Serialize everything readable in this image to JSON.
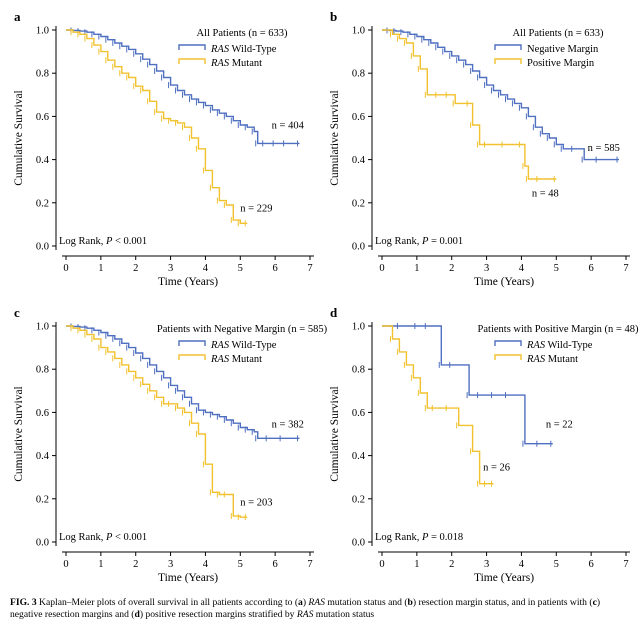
{
  "colors": {
    "wild": "#4f6fc0",
    "mutant": "#f2c12e",
    "axis": "#000000"
  },
  "caption": {
    "label": "FIG. 3",
    "parts": [
      {
        "t": " Kaplan–Meier plots of overall survival in all patients according to (",
        "s": "n"
      },
      {
        "t": "a",
        "s": "b"
      },
      {
        "t": ") ",
        "s": "n"
      },
      {
        "t": "RAS",
        "s": "i"
      },
      {
        "t": " mutation status and (",
        "s": "n"
      },
      {
        "t": "b",
        "s": "b"
      },
      {
        "t": ") resection margin status, and in patients with (",
        "s": "n"
      },
      {
        "t": "c",
        "s": "b"
      },
      {
        "t": ") negative resection margins and (",
        "s": "n"
      },
      {
        "t": "d",
        "s": "b"
      },
      {
        "t": ") positive resection margins stratified by ",
        "s": "n"
      },
      {
        "t": "RAS",
        "s": "i"
      },
      {
        "t": " mutation status",
        "s": "n"
      }
    ]
  },
  "chart_data": [
    {
      "type": "line",
      "panel": "a",
      "title": "All Patients (n = 633)",
      "xlabel": "Time (Years)",
      "ylabel": "Cumulative Survival",
      "xlim": [
        0,
        7
      ],
      "ylim": [
        0,
        1
      ],
      "xticks": [
        0,
        1,
        2,
        3,
        4,
        5,
        6,
        7
      ],
      "yticks": [
        "0.0",
        "0.2",
        "0.4",
        "0.6",
        "0.8",
        "1.0"
      ],
      "footnote": {
        "pre": "Log Rank, ",
        "ital": "P",
        "post": " < 0.001"
      },
      "series": [
        {
          "name_it": "RAS",
          "name_rest": " Wild-Type",
          "color_key": "wild",
          "x": [
            0,
            0.2,
            0.4,
            0.6,
            0.8,
            1.0,
            1.2,
            1.4,
            1.6,
            1.8,
            2.0,
            2.2,
            2.4,
            2.6,
            2.8,
            3.0,
            3.2,
            3.4,
            3.6,
            3.8,
            4.0,
            4.2,
            4.4,
            4.6,
            4.8,
            5.0,
            5.2,
            5.4,
            5.5,
            5.7,
            6.0,
            6.3,
            6.7
          ],
          "y": [
            1.0,
            0.998,
            0.995,
            0.99,
            0.98,
            0.97,
            0.955,
            0.94,
            0.925,
            0.91,
            0.89,
            0.865,
            0.84,
            0.81,
            0.78,
            0.745,
            0.72,
            0.7,
            0.68,
            0.665,
            0.65,
            0.63,
            0.615,
            0.6,
            0.58,
            0.56,
            0.55,
            0.53,
            0.475,
            0.475,
            0.475,
            0.475,
            0.475
          ],
          "n_label": "n = 404",
          "n_at": [
            5.9,
            0.545
          ]
        },
        {
          "name_it": "RAS",
          "name_rest": " Mutant",
          "color_key": "mutant",
          "x": [
            0,
            0.2,
            0.4,
            0.6,
            0.8,
            1.0,
            1.2,
            1.4,
            1.6,
            1.8,
            2.0,
            2.2,
            2.4,
            2.6,
            2.8,
            3.0,
            3.2,
            3.4,
            3.6,
            3.8,
            4.0,
            4.2,
            4.4,
            4.6,
            4.8,
            5.0,
            5.2
          ],
          "y": [
            1.0,
            0.99,
            0.98,
            0.96,
            0.93,
            0.9,
            0.86,
            0.83,
            0.8,
            0.78,
            0.74,
            0.72,
            0.67,
            0.62,
            0.59,
            0.58,
            0.57,
            0.55,
            0.5,
            0.45,
            0.35,
            0.27,
            0.21,
            0.19,
            0.12,
            0.105,
            0.105
          ],
          "n_label": "n = 229",
          "n_at": [
            5.0,
            0.16
          ]
        }
      ]
    },
    {
      "type": "line",
      "panel": "b",
      "title": "All Patients (n = 633)",
      "xlabel": "Time (Years)",
      "ylabel": "Cumulative Survival",
      "xlim": [
        0,
        7
      ],
      "ylim": [
        0,
        1
      ],
      "xticks": [
        0,
        1,
        2,
        3,
        4,
        5,
        6,
        7
      ],
      "yticks": [
        "0.0",
        "0.2",
        "0.4",
        "0.6",
        "0.8",
        "1.0"
      ],
      "footnote": {
        "pre": "Log Rank, ",
        "ital": "P",
        "post": " = 0.001"
      },
      "series": [
        {
          "name_it": "",
          "name_rest": "Negative Margin",
          "color_key": "wild",
          "x": [
            0,
            0.2,
            0.4,
            0.6,
            0.8,
            1.0,
            1.2,
            1.4,
            1.6,
            1.8,
            2.0,
            2.2,
            2.4,
            2.6,
            2.8,
            3.0,
            3.2,
            3.4,
            3.6,
            3.8,
            4.0,
            4.2,
            4.4,
            4.6,
            4.8,
            5.0,
            5.2,
            5.5,
            5.8,
            6.2,
            6.8
          ],
          "y": [
            1.0,
            0.998,
            0.995,
            0.99,
            0.98,
            0.97,
            0.955,
            0.94,
            0.92,
            0.9,
            0.88,
            0.86,
            0.84,
            0.81,
            0.78,
            0.745,
            0.72,
            0.7,
            0.68,
            0.66,
            0.64,
            0.6,
            0.55,
            0.52,
            0.5,
            0.47,
            0.45,
            0.45,
            0.4,
            0.4,
            0.4
          ],
          "n_label": "n = 585",
          "n_at": [
            5.9,
            0.44
          ]
        },
        {
          "name_it": "",
          "name_rest": "Positive Margin",
          "color_key": "mutant",
          "x": [
            0,
            0.3,
            0.5,
            0.7,
            0.9,
            1.1,
            1.3,
            1.6,
            1.9,
            2.1,
            2.5,
            2.6,
            2.8,
            3.0,
            3.5,
            4.0,
            4.1,
            4.2,
            4.5,
            5.0
          ],
          "y": [
            1.0,
            0.98,
            0.96,
            0.94,
            0.88,
            0.82,
            0.7,
            0.7,
            0.7,
            0.66,
            0.66,
            0.56,
            0.47,
            0.47,
            0.47,
            0.47,
            0.37,
            0.31,
            0.31,
            0.31
          ],
          "n_label": "n = 48",
          "n_at": [
            4.3,
            0.23
          ]
        }
      ]
    },
    {
      "type": "line",
      "panel": "c",
      "title": "Patients with Negative Margin (n = 585)",
      "xlabel": "Time (Years)",
      "ylabel": "Cumulative Survival",
      "xlim": [
        0,
        7
      ],
      "ylim": [
        0,
        1
      ],
      "xticks": [
        0,
        1,
        2,
        3,
        4,
        5,
        6,
        7
      ],
      "yticks": [
        "0.0",
        "0.2",
        "0.4",
        "0.6",
        "0.8",
        "1.0"
      ],
      "footnote": {
        "pre": "Log Rank, ",
        "ital": "P",
        "post": " < 0.001"
      },
      "series": [
        {
          "name_it": "RAS",
          "name_rest": " Wild-Type",
          "color_key": "wild",
          "x": [
            0,
            0.2,
            0.4,
            0.6,
            0.8,
            1.0,
            1.2,
            1.4,
            1.6,
            1.8,
            2.0,
            2.2,
            2.4,
            2.6,
            2.8,
            3.0,
            3.2,
            3.4,
            3.6,
            3.8,
            4.0,
            4.2,
            4.4,
            4.6,
            4.8,
            5.0,
            5.2,
            5.4,
            5.5,
            5.8,
            6.2,
            6.7
          ],
          "y": [
            1.0,
            0.998,
            0.995,
            0.99,
            0.98,
            0.97,
            0.955,
            0.94,
            0.92,
            0.9,
            0.875,
            0.85,
            0.82,
            0.79,
            0.76,
            0.725,
            0.7,
            0.67,
            0.64,
            0.61,
            0.6,
            0.59,
            0.58,
            0.565,
            0.55,
            0.53,
            0.52,
            0.51,
            0.48,
            0.48,
            0.48,
            0.48
          ],
          "n_label": "n = 382",
          "n_at": [
            5.9,
            0.53
          ]
        },
        {
          "name_it": "RAS",
          "name_rest": " Mutant",
          "color_key": "mutant",
          "x": [
            0,
            0.2,
            0.4,
            0.6,
            0.8,
            1.0,
            1.2,
            1.4,
            1.6,
            1.8,
            2.0,
            2.2,
            2.4,
            2.6,
            2.8,
            3.0,
            3.2,
            3.4,
            3.6,
            3.8,
            4.0,
            4.2,
            4.4,
            4.6,
            4.8,
            5.0,
            5.2
          ],
          "y": [
            1.0,
            0.99,
            0.98,
            0.96,
            0.94,
            0.9,
            0.88,
            0.85,
            0.82,
            0.79,
            0.76,
            0.73,
            0.7,
            0.67,
            0.64,
            0.64,
            0.62,
            0.6,
            0.55,
            0.5,
            0.36,
            0.23,
            0.22,
            0.22,
            0.12,
            0.115,
            0.115
          ],
          "n_label": "n = 203",
          "n_at": [
            5.0,
            0.17
          ]
        }
      ]
    },
    {
      "type": "line",
      "panel": "d",
      "title": "Patients with Positive Margin (n = 48)",
      "xlabel": "Time (Years)",
      "ylabel": "Cumulative Survival",
      "xlim": [
        0,
        7
      ],
      "ylim": [
        0,
        1
      ],
      "xticks": [
        0,
        1,
        2,
        3,
        4,
        5,
        6,
        7
      ],
      "yticks": [
        "0.0",
        "0.2",
        "0.4",
        "0.6",
        "0.8",
        "1.0"
      ],
      "footnote": {
        "pre": "Log Rank, ",
        "ital": "P",
        "post": " = 0.018"
      },
      "series": [
        {
          "name_it": "RAS",
          "name_rest": " Wild-Type",
          "color_key": "wild",
          "x": [
            0,
            0.5,
            1.0,
            1.3,
            1.7,
            2.0,
            2.5,
            2.8,
            3.2,
            3.6,
            4.1,
            4.5,
            4.9
          ],
          "y": [
            1.0,
            1.0,
            1.0,
            1.0,
            0.82,
            0.82,
            0.68,
            0.68,
            0.68,
            0.68,
            0.455,
            0.455,
            0.455
          ],
          "n_label": "n = 22",
          "n_at": [
            4.7,
            0.53
          ]
        },
        {
          "name_it": "RAS",
          "name_rest": " Mutant",
          "color_key": "mutant",
          "x": [
            0,
            0.3,
            0.5,
            0.7,
            0.9,
            1.1,
            1.3,
            1.5,
            1.9,
            2.2,
            2.6,
            2.8,
            3.0,
            3.2
          ],
          "y": [
            1.0,
            0.94,
            0.88,
            0.82,
            0.76,
            0.69,
            0.62,
            0.62,
            0.62,
            0.54,
            0.42,
            0.27,
            0.27,
            0.27
          ],
          "n_label": "n = 26",
          "n_at": [
            2.9,
            0.33
          ]
        }
      ]
    }
  ]
}
